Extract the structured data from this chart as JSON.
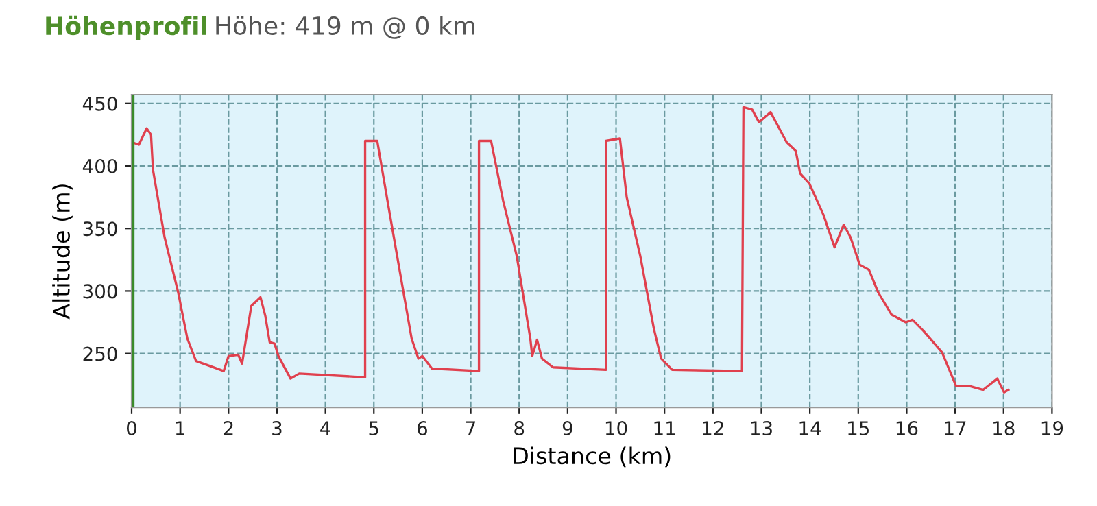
{
  "chart_data": {
    "type": "line",
    "title": "Höhenprofil",
    "subtitle": "Höhe: 419 m @ 0 km",
    "xlabel": "Distance (km)",
    "ylabel": "Altitude (m)",
    "xlim": [
      0,
      19
    ],
    "ylim": [
      207,
      457
    ],
    "xticks": [
      0,
      1,
      2,
      3,
      4,
      5,
      6,
      7,
      8,
      9,
      10,
      11,
      12,
      13,
      14,
      15,
      16,
      17,
      18,
      19
    ],
    "yticks": [
      250,
      300,
      350,
      400,
      450
    ],
    "grid": true,
    "marker": "none",
    "line_style": "solid",
    "ref_lines": [
      {
        "axis": "x",
        "value": 0,
        "label": null,
        "color": "#3a8a2a"
      }
    ],
    "series": [
      {
        "color": "#e0404e",
        "x": [
          0,
          0.15,
          0.31,
          0.4,
          0.44,
          0.68,
          0.96,
          1.15,
          1.33,
          1.62,
          1.9,
          2.0,
          2.2,
          2.28,
          2.47,
          2.66,
          2.76,
          2.85,
          2.95,
          3.03,
          3.28,
          3.46,
          4.82,
          4.82,
          5.07,
          5.3,
          5.58,
          5.78,
          5.92,
          6.0,
          6.2,
          7.17,
          7.17,
          7.42,
          7.67,
          7.95,
          8.23,
          8.27,
          8.37,
          8.47,
          8.7,
          9.79,
          9.79,
          10.08,
          10.22,
          10.5,
          10.78,
          10.93,
          11.16,
          12.6,
          12.63,
          12.81,
          12.95,
          13.19,
          13.52,
          13.71,
          13.8,
          13.99,
          14.28,
          14.51,
          14.7,
          14.84,
          15.03,
          15.22,
          15.41,
          15.69,
          15.98,
          16.12,
          16.35,
          16.73,
          17.02,
          17.3,
          17.58,
          17.87,
          18.01,
          18.1
        ],
        "values": [
          419,
          417,
          430,
          425,
          397,
          343,
          299,
          262,
          244,
          240,
          236,
          248,
          249,
          242,
          288,
          295,
          280,
          259,
          258,
          248,
          230,
          234,
          231,
          420,
          420,
          368,
          306,
          262,
          246,
          248,
          238,
          236,
          420,
          420,
          372,
          328,
          262,
          248,
          261,
          246,
          239,
          237,
          420,
          422,
          375,
          328,
          270,
          246,
          237,
          236,
          447,
          445,
          435,
          443,
          419,
          412,
          394,
          386,
          361,
          335,
          353,
          343,
          321,
          317,
          299,
          281,
          275,
          277,
          268,
          251,
          224,
          224,
          221,
          230,
          219,
          221
        ]
      }
    ]
  }
}
